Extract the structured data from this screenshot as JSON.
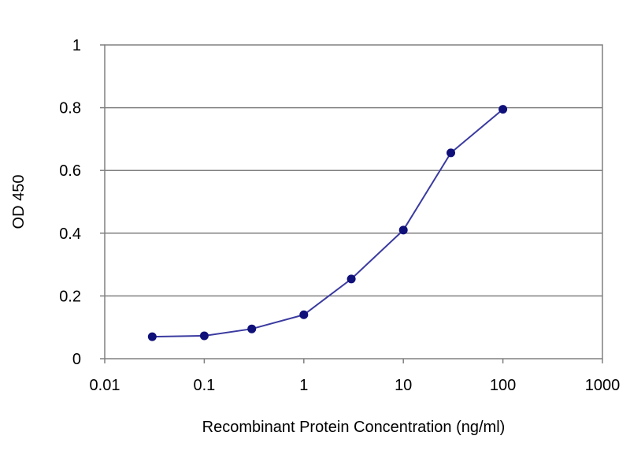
{
  "chart_data": {
    "type": "line",
    "title": "",
    "xlabel": "Recombinant Protein Concentration (ng/ml)",
    "ylabel": "OD 450",
    "xscale": "log",
    "xlim": [
      0.01,
      1000
    ],
    "ylim": [
      0,
      1
    ],
    "xticks": [
      0.01,
      0.1,
      1,
      10,
      100,
      1000
    ],
    "xtick_labels": [
      "0.01",
      "0.1",
      "1",
      "10",
      "100",
      "1000"
    ],
    "yticks": [
      0,
      0.2,
      0.4,
      0.6,
      0.8,
      1
    ],
    "ytick_labels": [
      "0",
      "0.2",
      "0.4",
      "0.6",
      "0.8",
      "1"
    ],
    "grid": "horizontal",
    "series": [
      {
        "x": [
          0.03,
          0.1,
          0.3,
          1,
          3,
          10,
          30,
          100
        ],
        "y": [
          0.07,
          0.073,
          0.095,
          0.14,
          0.254,
          0.41,
          0.656,
          0.795
        ],
        "color": "#3a3aa0",
        "marker_color": "#10107a"
      }
    ]
  }
}
